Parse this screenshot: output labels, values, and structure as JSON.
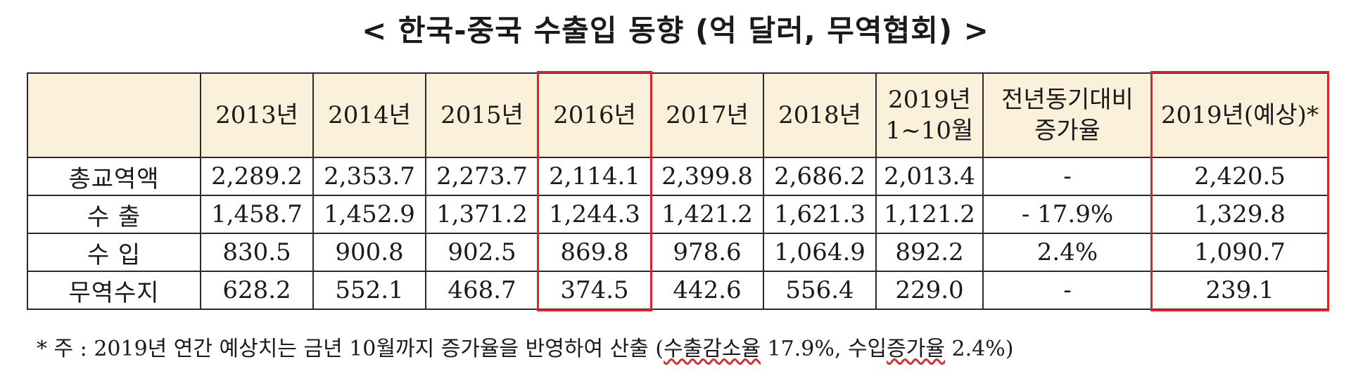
{
  "title": "< 한국-중국 수출입 동향 (억 달러, 무역협회) >",
  "table": {
    "header": {
      "corner": "",
      "columns": [
        "2013년",
        "2014년",
        "2015년",
        "2016년",
        "2017년",
        "2018년",
        "2019년\n1~10월",
        "전년동기대비\n증가율",
        "2019년(예상)*"
      ]
    },
    "rows": [
      {
        "label": "총교역액",
        "cells": [
          "2,289.2",
          "2,353.7",
          "2,273.7",
          "2,114.1",
          "2,399.8",
          "2,686.2",
          "2,013.4",
          "-",
          "2,420.5"
        ]
      },
      {
        "label": "수 출",
        "cells": [
          "1,458.7",
          "1,452.9",
          "1,371.2",
          "1,244.3",
          "1,421.2",
          "1,621.3",
          "1,121.2",
          "- 17.9%",
          "1,329.8"
        ]
      },
      {
        "label": "수 입",
        "cells": [
          "830.5",
          "900.8",
          "902.5",
          "869.8",
          "978.6",
          "1,064.9",
          "892.2",
          "2.4%",
          "1,090.7"
        ]
      },
      {
        "label": "무역수지",
        "cells": [
          "628.2",
          "552.1",
          "468.7",
          "374.5",
          "442.6",
          "556.4",
          "229.0",
          "-",
          "239.1"
        ]
      }
    ]
  },
  "highlights": {
    "color": "#e2202a",
    "columns": [
      "2016년",
      "2019년(예상)*"
    ]
  },
  "note": {
    "prefix": "* 주 : 2019년 연간 예상치는 금년 10월까지 증가율을 반영하여 산출 (",
    "underlined": "수출감소율",
    "middle": " 17.9%, 수입",
    "underlined2": "증가율",
    "suffix": " 2.4%)"
  }
}
